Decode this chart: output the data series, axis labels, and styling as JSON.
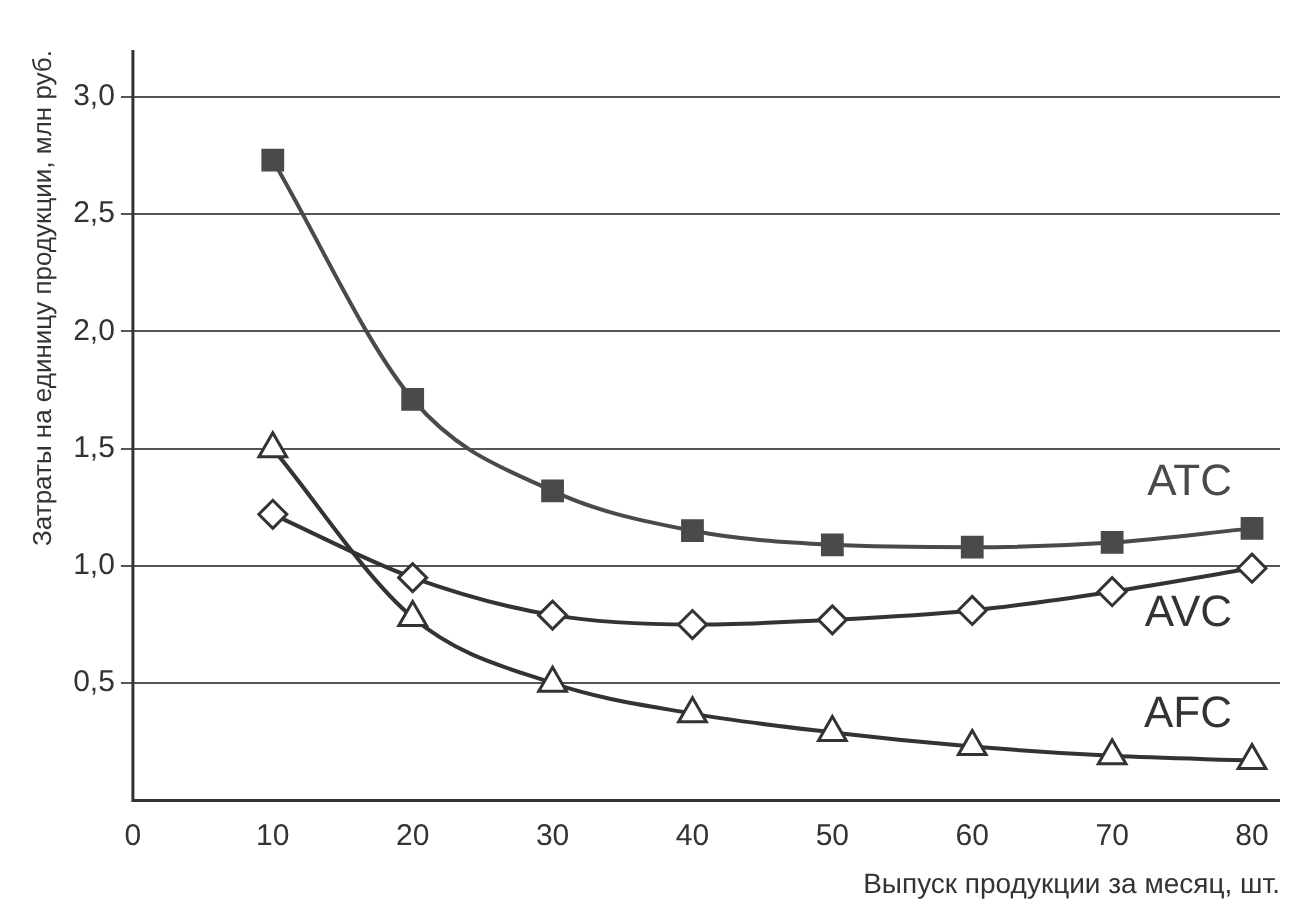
{
  "chart_data": {
    "type": "line",
    "xlabel": "Выпуск продукции за месяц, шт.",
    "ylabel": "Затраты на единицу продукции, млн руб.",
    "x": [
      10,
      20,
      30,
      40,
      50,
      60,
      70,
      80
    ],
    "series": [
      {
        "name": "ATC",
        "color": "#4a4a4a",
        "marker": "square",
        "values": [
          2.73,
          1.71,
          1.32,
          1.15,
          1.09,
          1.08,
          1.1,
          1.16
        ]
      },
      {
        "name": "AVC",
        "color": "#333333",
        "marker": "diamond",
        "values": [
          1.22,
          0.95,
          0.79,
          0.75,
          0.77,
          0.81,
          0.89,
          0.99
        ]
      },
      {
        "name": "AFC",
        "color": "#333333",
        "marker": "triangle",
        "values": [
          1.5,
          0.78,
          0.5,
          0.37,
          0.29,
          0.23,
          0.19,
          0.17
        ]
      }
    ],
    "xlim": [
      0,
      82
    ],
    "xticks": [
      0,
      10,
      20,
      30,
      40,
      50,
      60,
      70,
      80
    ],
    "ylim": [
      0,
      3.2
    ],
    "yticks": [
      {
        "value": 0.5,
        "label": "0,5"
      },
      {
        "value": 1,
        "label": "1,0"
      },
      {
        "value": 1.5,
        "label": "1,5"
      },
      {
        "value": 2,
        "label": "2,0"
      },
      {
        "value": 2.5,
        "label": "2,5"
      },
      {
        "value": 3,
        "label": "3,0"
      }
    ],
    "grid": "y",
    "line_style": "solid"
  }
}
